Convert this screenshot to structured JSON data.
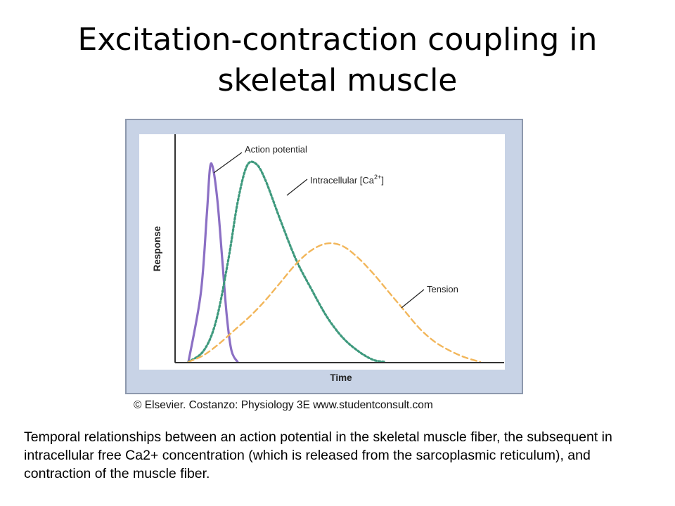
{
  "slide": {
    "title_line1": "Excitation-contraction coupling in",
    "title_line2": "skeletal muscle",
    "credit": "© Elsevier. Costanzo: Physiology 3E www.studentconsult.com",
    "caption": "Temporal relationships between an action potential in the skeletal muscle fiber, the subsequent in intracellular free Ca2+ concentration (which is released from the sarcoplasmic reticulum), and contraction of the muscle fiber."
  },
  "colors": {
    "frame_bg": "#c8d3e6",
    "plot_bg": "#ffffff",
    "action_potential": "#8b6fc4",
    "calcium": "#3f9a7e",
    "tension": "#f2b65a"
  },
  "chart_data": {
    "type": "line",
    "title": "",
    "xlabel": "Time",
    "ylabel": "Response",
    "xlim": [
      0,
      100
    ],
    "ylim": [
      0,
      100
    ],
    "grid": false,
    "legend": "annotations",
    "series": [
      {
        "name": "Action potential",
        "style": "solid",
        "x": [
          0,
          4,
          6,
          7,
          8,
          9.5,
          11,
          12.5,
          14,
          16
        ],
        "y": [
          0,
          30,
          65,
          85,
          85,
          70,
          45,
          20,
          5,
          0
        ]
      },
      {
        "name": "Intracellular [Ca2+]",
        "style": "dotted",
        "x": [
          0,
          5,
          9,
          13,
          16,
          19,
          22,
          25,
          30,
          35,
          40,
          45,
          50,
          55,
          60,
          64
        ],
        "y": [
          0,
          5,
          18,
          45,
          70,
          86,
          87,
          80,
          62,
          45,
          32,
          20,
          11,
          5,
          1,
          0
        ]
      },
      {
        "name": "Tension",
        "style": "dashed",
        "x": [
          0,
          5,
          10,
          15,
          20,
          25,
          30,
          35,
          40,
          45,
          50,
          55,
          60,
          65,
          70,
          75,
          80,
          85,
          90,
          95
        ],
        "y": [
          0,
          3,
          8,
          14,
          20,
          27,
          35,
          43,
          49,
          52,
          51,
          46,
          39,
          31,
          23,
          15,
          9,
          5,
          2,
          0
        ]
      }
    ],
    "annotations": [
      "Action potential",
      "Intracellular [Ca2+]",
      "Tension"
    ]
  }
}
